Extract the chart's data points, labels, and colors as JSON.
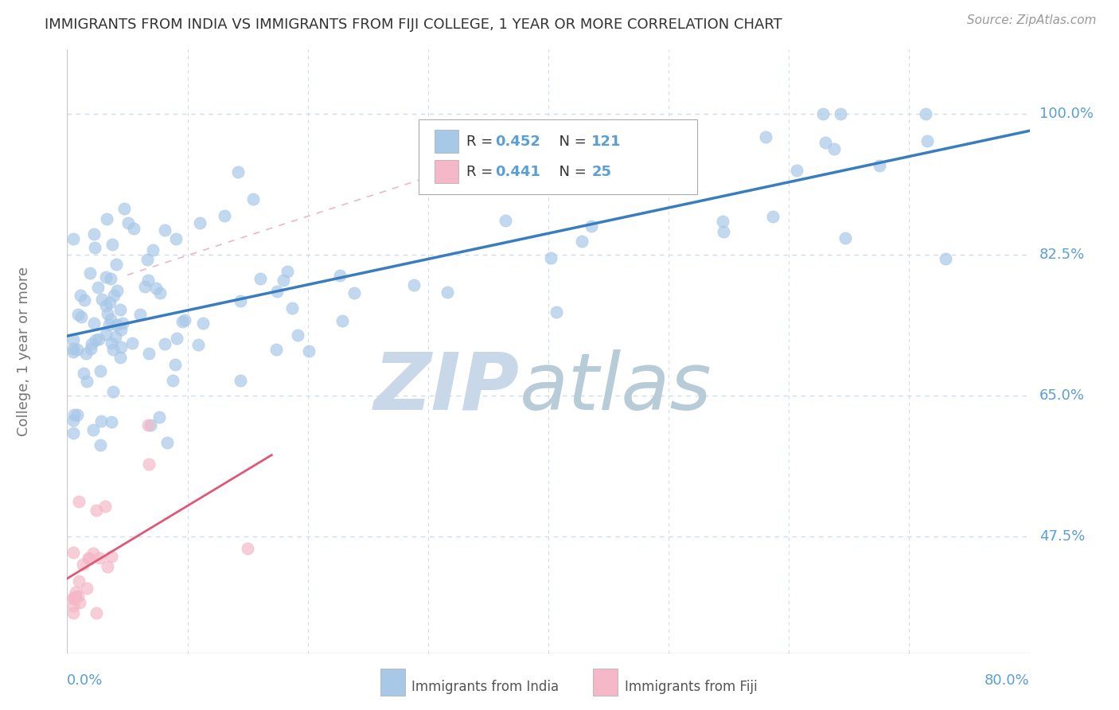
{
  "title": "IMMIGRANTS FROM INDIA VS IMMIGRANTS FROM FIJI COLLEGE, 1 YEAR OR MORE CORRELATION CHART",
  "source": "Source: ZipAtlas.com",
  "ylabel": "College, 1 year or more",
  "xlim": [
    0.0,
    0.8
  ],
  "ylim": [
    0.33,
    1.08
  ],
  "xticks": [
    0.0,
    0.1,
    0.2,
    0.3,
    0.4,
    0.5,
    0.6,
    0.7,
    0.8
  ],
  "yticks": [
    0.475,
    0.65,
    0.825,
    1.0
  ],
  "yticklabels": [
    "47.5%",
    "65.0%",
    "82.5%",
    "100.0%"
  ],
  "india_R": 0.452,
  "india_N": 121,
  "fiji_R": 0.441,
  "fiji_N": 25,
  "india_color": "#a8c8e8",
  "fiji_color": "#f4b8c8",
  "india_line_color": "#3a7dbf",
  "fiji_line_color": "#e05878",
  "dashed_line_color": "#e0a8b8",
  "grid_color": "#d0dde8",
  "axis_color": "#cccccc",
  "label_color": "#5a9fd4",
  "watermark_zip_color": "#c8d8e8",
  "watermark_atlas_color": "#b8ccd8",
  "background_color": "#ffffff",
  "title_fontsize": 13,
  "source_fontsize": 11,
  "tick_fontsize": 13,
  "ylabel_fontsize": 13
}
